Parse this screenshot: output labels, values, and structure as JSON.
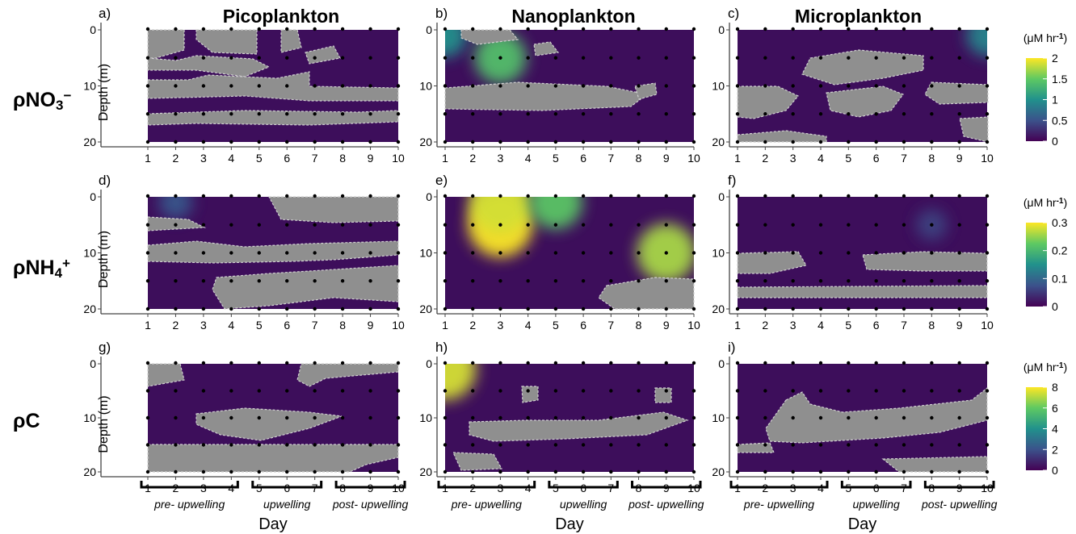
{
  "column_titles": [
    "Picoplankton",
    "Nanoplankton",
    "Microplankton"
  ],
  "row_labels": [
    {
      "base": "ρNO",
      "sub": "3",
      "sup": "−"
    },
    {
      "base": "ρNH",
      "sub": "4",
      "sup": "+"
    },
    {
      "base": "ρC",
      "sub": "",
      "sup": ""
    }
  ],
  "panel_letters": [
    "a)",
    "b)",
    "c)",
    "d)",
    "e)",
    "f)",
    "g)",
    "h)",
    "i)"
  ],
  "axis": {
    "ylabel": "Depth (m)",
    "xlabel": "Day",
    "x_ticks": [
      "1",
      "2",
      "3",
      "4",
      "5",
      "6",
      "7",
      "8",
      "9",
      "10"
    ],
    "y_ticks": [
      "0",
      "10",
      "20"
    ]
  },
  "legends": [
    {
      "unit_prefix": "(μM hr",
      "unit_sup": "-1",
      "unit_suffix": ")",
      "ticks": [
        "2",
        "1.5",
        "1",
        "0.5",
        "0"
      ],
      "max": 2
    },
    {
      "unit_prefix": "(μM hr",
      "unit_sup": "-1",
      "unit_suffix": ")",
      "ticks": [
        "0.3",
        "0.2",
        "0.1",
        "0"
      ],
      "max": 0.3
    },
    {
      "unit_prefix": "(μM hr",
      "unit_sup": "-1",
      "unit_suffix": ")",
      "ticks": [
        "8",
        "6",
        "4",
        "2",
        "0"
      ],
      "max": 8
    }
  ],
  "phases": [
    {
      "label": "pre- upwelling",
      "days": [
        1,
        4
      ]
    },
    {
      "label": "upwelling",
      "days": [
        5,
        7
      ]
    },
    {
      "label": "post- upwelling",
      "days": [
        8,
        10
      ]
    }
  ],
  "colors": {
    "low": "#3d0e5b",
    "masked": "#8f8f8f",
    "grid_dot": "#000000",
    "viridis": [
      "#440154",
      "#3b528b",
      "#21918c",
      "#5ec962",
      "#fde725"
    ]
  },
  "chart_data": {
    "type": "heatmap",
    "x_days": [
      1,
      2,
      3,
      4,
      5,
      6,
      7,
      8,
      9,
      10
    ],
    "sample_depths_m": [
      1,
      5,
      10,
      15,
      20
    ],
    "y_range_m": [
      0,
      20
    ],
    "panels": [
      {
        "letter": "a)",
        "group": "Picoplankton",
        "variable": "ρNO3−",
        "max": 2,
        "hotspots": []
      },
      {
        "letter": "b)",
        "group": "Nanoplankton",
        "variable": "ρNO3−",
        "max": 2,
        "hotspots": [
          {
            "day": 3,
            "depth": 5,
            "value": 1.4
          },
          {
            "day": 1,
            "depth": 1,
            "value": 1.0
          }
        ]
      },
      {
        "letter": "c)",
        "group": "Microplankton",
        "variable": "ρNO3−",
        "max": 2,
        "hotspots": [
          {
            "day": 10,
            "depth": 1,
            "value": 0.9
          }
        ]
      },
      {
        "letter": "d)",
        "group": "Picoplankton",
        "variable": "ρNH4+",
        "max": 0.3,
        "hotspots": [
          {
            "day": 2,
            "depth": 1,
            "value": 0.08
          }
        ]
      },
      {
        "letter": "e)",
        "group": "Nanoplankton",
        "variable": "ρNH4+",
        "max": 0.3,
        "hotspots": [
          {
            "day": 3,
            "depth": 5,
            "value": 0.3
          },
          {
            "day": 3,
            "depth": 1,
            "value": 0.28
          },
          {
            "day": 9,
            "depth": 10,
            "value": 0.26
          },
          {
            "day": 5,
            "depth": 1,
            "value": 0.22
          }
        ]
      },
      {
        "letter": "f)",
        "group": "Microplankton",
        "variable": "ρNH4+",
        "max": 0.3,
        "hotspots": [
          {
            "day": 8,
            "depth": 5,
            "value": 0.06
          }
        ]
      },
      {
        "letter": "g)",
        "group": "Picoplankton",
        "variable": "ρC",
        "max": 8,
        "hotspots": []
      },
      {
        "letter": "h)",
        "group": "Nanoplankton",
        "variable": "ρC",
        "max": 8,
        "hotspots": [
          {
            "day": 1,
            "depth": 1,
            "value": 7.5
          }
        ]
      },
      {
        "letter": "i)",
        "group": "Microplankton",
        "variable": "ρC",
        "max": 8,
        "hotspots": []
      }
    ]
  }
}
